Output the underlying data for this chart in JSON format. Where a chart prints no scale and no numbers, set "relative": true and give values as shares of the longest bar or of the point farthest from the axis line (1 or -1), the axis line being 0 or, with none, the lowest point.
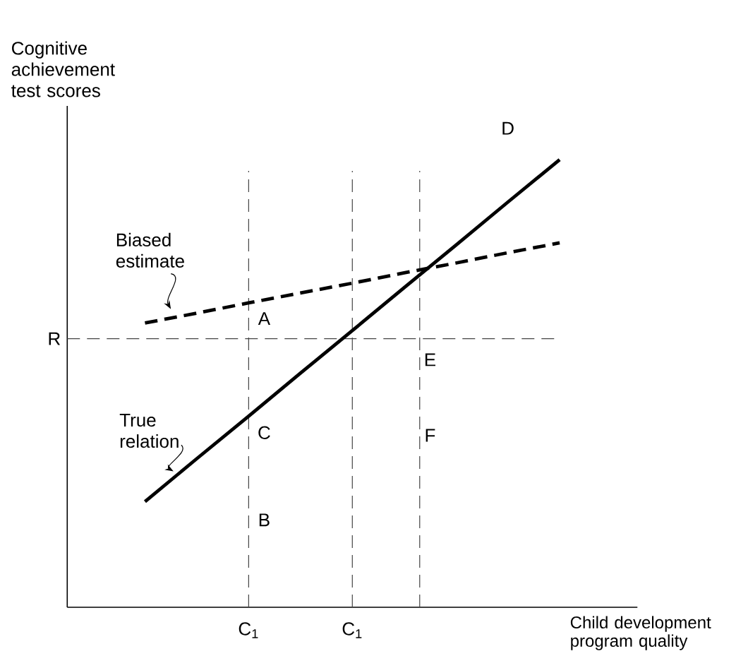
{
  "chart_data": {
    "type": "line",
    "relative": true,
    "grid": "x",
    "xlabel": "Child development program quality",
    "ylabel": "Cognitive achievement test scores",
    "categories": [
      null,
      null,
      null,
      "C$_{1}$",
      null,
      "C$_{1}$",
      null,
      null,
      null,
      null,
      null
    ],
    "series": [
      {
        "name": "Biased estimate",
        "color": "#000000",
        "line_style": "dashed",
        "values": [
          null,
          0.635,
          0.657,
          0.68,
          0.702,
          0.724,
          0.747,
          0.769,
          0.792,
          0.814,
          null
        ]
      },
      {
        "name": "True relation",
        "color": "#000000",
        "line_style": "solid",
        "values": [
          null,
          0.236,
          0.332,
          0.427,
          0.523,
          0.618,
          0.714,
          0.809,
          0.905,
          1.0,
          null
        ]
      }
    ],
    "ref_lines": [
      {
        "axis": "y",
        "value": 0.6,
        "label": "R",
        "color": "#444444",
        "line_style": "dashed"
      }
    ],
    "annotations": [
      "A",
      "B",
      "C",
      "D",
      "E",
      "F"
    ]
  }
}
